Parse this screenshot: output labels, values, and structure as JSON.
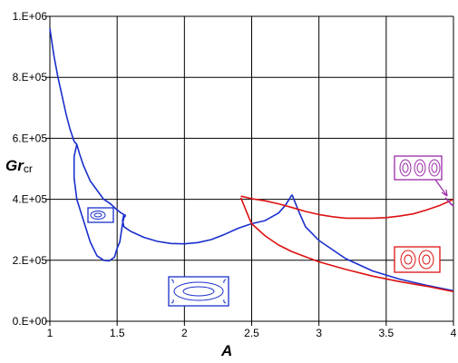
{
  "chart_data": {
    "type": "line",
    "xlabel": "A",
    "ylabel": "Gr",
    "ylabel_subscript": "cr",
    "xlim": [
      1,
      4
    ],
    "ylim": [
      0,
      1000000
    ],
    "x_ticks": [
      "1",
      "1.5",
      "2",
      "2.5",
      "3",
      "3.5",
      "4"
    ],
    "y_ticks": [
      "0.E+00",
      "2.E+05",
      "4.E+05",
      "6.E+05",
      "8.E+05",
      "1.E+06"
    ],
    "grid": true,
    "colors": {
      "blue": "#1a2fcc",
      "red": "#dd1111",
      "purple": "#9a2aa8"
    },
    "series": [
      {
        "color": "#1a2fcc",
        "x": [
          1.0,
          1.03,
          1.06,
          1.09,
          1.12,
          1.15,
          1.18,
          1.2,
          1.22,
          1.25,
          1.3,
          1.35,
          1.4,
          1.45,
          1.5,
          1.53,
          1.55
        ],
        "y": [
          960000,
          870000,
          800000,
          740000,
          680000,
          630000,
          590000,
          580000,
          550000,
          510000,
          460000,
          430000,
          400000,
          385000,
          365000,
          355000,
          350000
        ]
      },
      {
        "color": "#1a2fcc",
        "x": [
          1.2,
          1.18,
          1.18,
          1.2,
          1.25,
          1.3,
          1.35,
          1.4,
          1.44,
          1.48,
          1.5,
          1.52,
          1.53,
          1.54,
          1.55,
          1.56,
          1.56,
          1.55
        ],
        "y": [
          580000,
          540000,
          470000,
          400000,
          330000,
          260000,
          215000,
          200000,
          198000,
          210000,
          240000,
          260000,
          290000,
          320000,
          340000,
          345000,
          348000,
          350000
        ]
      },
      {
        "color": "#1a2fcc",
        "x": [
          1.55,
          1.54,
          1.55,
          1.6,
          1.7,
          1.8,
          1.9,
          2.0,
          2.1,
          2.2,
          2.3,
          2.4,
          2.5,
          2.6,
          2.7,
          2.75,
          2.8
        ],
        "y": [
          350000,
          330000,
          310000,
          295000,
          275000,
          262000,
          255000,
          254000,
          258000,
          268000,
          285000,
          305000,
          320000,
          330000,
          355000,
          380000,
          415000
        ]
      },
      {
        "color": "#1a2fcc",
        "x": [
          2.8,
          2.85,
          2.9,
          3.0,
          3.2,
          3.4,
          3.6,
          3.8,
          4.0
        ],
        "y": [
          415000,
          360000,
          310000,
          265000,
          205000,
          165000,
          138000,
          118000,
          100000
        ]
      },
      {
        "color": "#dd1111",
        "x": [
          2.42,
          2.5,
          2.6,
          2.7,
          2.8,
          2.9,
          3.0,
          3.1,
          3.2,
          3.3,
          3.4,
          3.5,
          3.6,
          3.7,
          3.8,
          3.9,
          4.0
        ],
        "y": [
          410000,
          402000,
          395000,
          385000,
          373000,
          360000,
          350000,
          343000,
          338000,
          338000,
          338000,
          340000,
          345000,
          352000,
          365000,
          380000,
          400000
        ]
      },
      {
        "color": "#dd1111",
        "x": [
          2.42,
          2.48,
          2.5,
          2.6,
          2.7,
          2.8,
          3.0,
          3.2,
          3.4,
          3.6,
          3.8,
          4.0
        ],
        "y": [
          405000,
          340000,
          320000,
          280000,
          250000,
          228000,
          195000,
          170000,
          148000,
          130000,
          115000,
          97000
        ]
      },
      {
        "color": "#9a2aa8",
        "x": [
          3.94,
          3.96,
          3.98,
          4.0
        ],
        "y": [
          405000,
          395000,
          385000,
          378000
        ]
      }
    ]
  }
}
